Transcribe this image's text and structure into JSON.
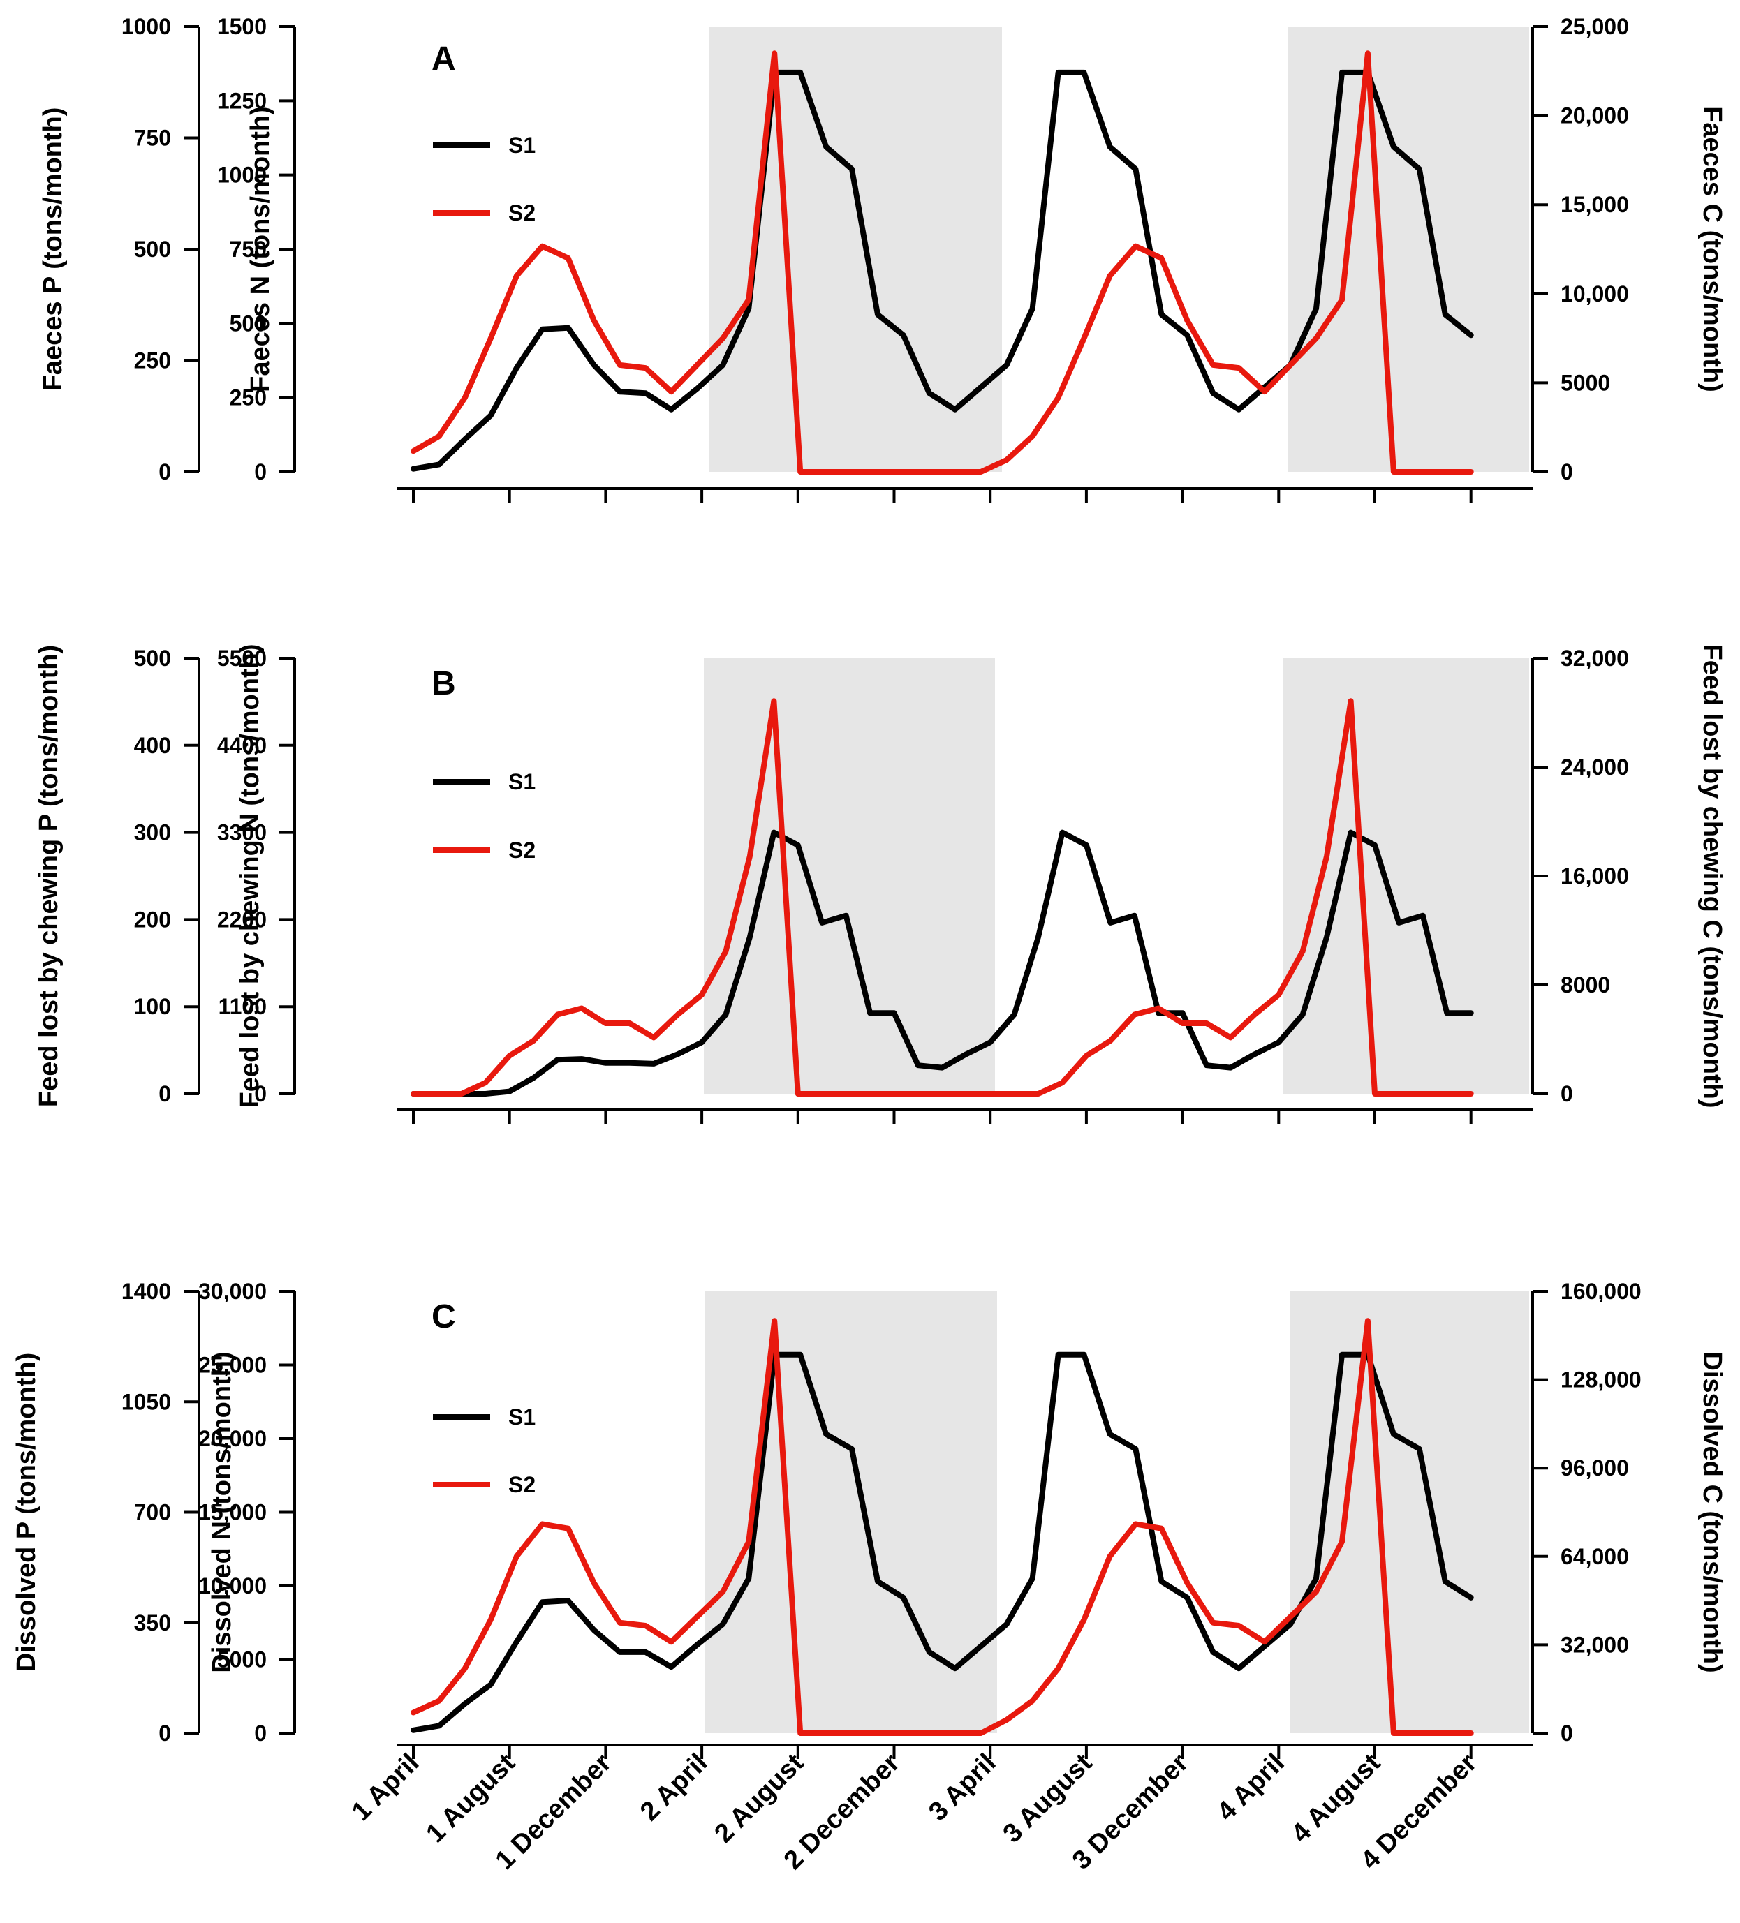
{
  "chart_data": [
    {
      "type": "line",
      "panel": "A",
      "x_labels": [
        "1 April",
        "1 August",
        "1 December",
        "2 April",
        "2 August",
        "2 December",
        "3 April",
        "3 August",
        "3 December",
        "4 April",
        "4 August",
        "4 December"
      ],
      "shaded_periods": [
        [
          "2 April",
          "3 April"
        ],
        [
          "4 April",
          "4 December"
        ]
      ],
      "legend": [
        "S1",
        "S2"
      ],
      "left_outer_axis": {
        "label": "Faeces P (tons/month)",
        "ticks": [
          "0",
          "250",
          "500",
          "750",
          "1000"
        ],
        "range": [
          0,
          1000
        ]
      },
      "left_inner_axis": {
        "label": "Faeces N (tons/month)",
        "ticks": [
          "0",
          "250",
          "500",
          "750",
          "1000",
          "1250",
          "1500"
        ],
        "range": [
          0,
          1500
        ]
      },
      "right_axis": {
        "label": "Faeces C (tons/month)",
        "ticks": [
          "0",
          "5000",
          "10,000",
          "15,000",
          "20,000",
          "25,000"
        ],
        "range": [
          0,
          25000
        ]
      },
      "series": [
        {
          "name": "S1",
          "color": "#000000",
          "values": [
            10,
            25,
            110,
            190,
            350,
            480,
            485,
            360,
            270,
            265,
            210,
            280,
            360,
            550,
            1345,
            1345,
            1095,
            1020,
            530,
            460,
            265,
            210,
            285,
            360,
            550,
            1345,
            1345,
            1095,
            1020,
            530,
            460,
            265,
            210,
            285,
            360,
            550,
            1345,
            1345,
            1095,
            1020,
            530,
            460
          ]
        },
        {
          "name": "S2",
          "color": "#e8190e",
          "values": [
            70,
            120,
            250,
            450,
            660,
            760,
            720,
            510,
            360,
            350,
            270,
            360,
            450,
            580,
            1410,
            0,
            0,
            0,
            0,
            0,
            0,
            0,
            0,
            40,
            120,
            250,
            450,
            660,
            760,
            720,
            510,
            360,
            350,
            270,
            360,
            450,
            580,
            1410,
            0,
            0,
            0,
            0
          ]
        }
      ]
    },
    {
      "type": "line",
      "panel": "B",
      "x_labels": [
        "1 April",
        "1 August",
        "1 December",
        "2 April",
        "2 August",
        "2 December",
        "3 April",
        "3 August",
        "3 December",
        "4 April",
        "4 August",
        "4 December"
      ],
      "shaded_periods": [
        [
          "2 April",
          "3 April"
        ],
        [
          "4 April",
          "4 December"
        ]
      ],
      "legend": [
        "S1",
        "S2"
      ],
      "left_outer_axis": {
        "label": "Feed lost by chewing P (tons/month)",
        "ticks": [
          "0",
          "100",
          "200",
          "300",
          "400",
          "500"
        ],
        "range": [
          0,
          500
        ]
      },
      "left_inner_axis": {
        "label": "Feed lost by chewing N (tons/month)",
        "ticks": [
          "0",
          "1100",
          "2200",
          "3300",
          "4400",
          "5500"
        ],
        "range": [
          0,
          5500
        ]
      },
      "right_axis": {
        "label": "Feed lost by chewing C (tons/month)",
        "ticks": [
          "0",
          "8000",
          "16,000",
          "24,000",
          "32,000"
        ],
        "range": [
          0,
          32000
        ]
      },
      "series": [
        {
          "name": "S1",
          "color": "#000000",
          "values": [
            0,
            0,
            0,
            0,
            30,
            200,
            430,
            440,
            390,
            390,
            380,
            500,
            650,
            1000,
            1980,
            3300,
            3140,
            2160,
            2250,
            1020,
            1020,
            360,
            330,
            500,
            650,
            1000,
            1980,
            3300,
            3140,
            2160,
            2250,
            1020,
            1020,
            360,
            330,
            500,
            650,
            1000,
            1980,
            3300,
            3140,
            2160,
            2250,
            1020,
            1020
          ]
        },
        {
          "name": "S2",
          "color": "#e8190e",
          "values": [
            0,
            0,
            0,
            140,
            480,
            670,
            1000,
            1080,
            890,
            890,
            710,
            1000,
            1250,
            1800,
            3000,
            4960,
            0,
            0,
            0,
            0,
            0,
            0,
            0,
            0,
            0,
            0,
            0,
            140,
            480,
            670,
            1000,
            1080,
            890,
            890,
            710,
            1000,
            1250,
            1800,
            3000,
            4960,
            0,
            0,
            0,
            0,
            0
          ]
        }
      ]
    },
    {
      "type": "line",
      "panel": "C",
      "x_labels": [
        "1 April",
        "1 August",
        "1 December",
        "2 April",
        "2 August",
        "2 December",
        "3 April",
        "3 August",
        "3 December",
        "4 April",
        "4 August",
        "4 December"
      ],
      "shaded_periods": [
        [
          "2 April",
          "3 April"
        ],
        [
          "4 April",
          "4 December"
        ]
      ],
      "legend": [
        "S1",
        "S2"
      ],
      "left_outer_axis": {
        "label": "Dissolved P (tons/month)",
        "ticks": [
          "0",
          "350",
          "700",
          "1050",
          "1400"
        ],
        "range": [
          0,
          1400
        ]
      },
      "left_inner_axis": {
        "label": "Dissolved N (tons/month)",
        "ticks": [
          "0",
          "5000",
          "10,000",
          "15,000",
          "20,000",
          "25,000",
          "30,000"
        ],
        "range": [
          0,
          30000
        ]
      },
      "right_axis": {
        "label": "Dissolved C (tons/month)",
        "ticks": [
          "0",
          "32,000",
          "64,000",
          "96,000",
          "128,000",
          "160,000"
        ],
        "range": [
          0,
          160000
        ]
      },
      "series": [
        {
          "name": "S1",
          "color": "#000000",
          "values": [
            200,
            500,
            2000,
            3300,
            6200,
            8900,
            9000,
            7000,
            5500,
            5500,
            4500,
            6000,
            7400,
            10500,
            25700,
            25700,
            20300,
            19300,
            10300,
            9200,
            5500,
            4400,
            5900,
            7400,
            10500,
            25700,
            25700,
            20300,
            19300,
            10300,
            9200,
            5500,
            4400,
            5900,
            7400,
            10500,
            25700,
            25700,
            20300,
            19300,
            10300,
            9200
          ]
        },
        {
          "name": "S2",
          "color": "#e8190e",
          "values": [
            1400,
            2200,
            4400,
            7700,
            12000,
            14200,
            13900,
            10200,
            7500,
            7300,
            6200,
            7900,
            9600,
            13000,
            28000,
            0,
            0,
            0,
            0,
            0,
            0,
            0,
            0,
            900,
            2200,
            4400,
            7700,
            12000,
            14200,
            13900,
            10200,
            7500,
            7300,
            6200,
            7900,
            9600,
            13000,
            28000,
            0,
            0,
            0,
            0
          ]
        }
      ]
    }
  ]
}
